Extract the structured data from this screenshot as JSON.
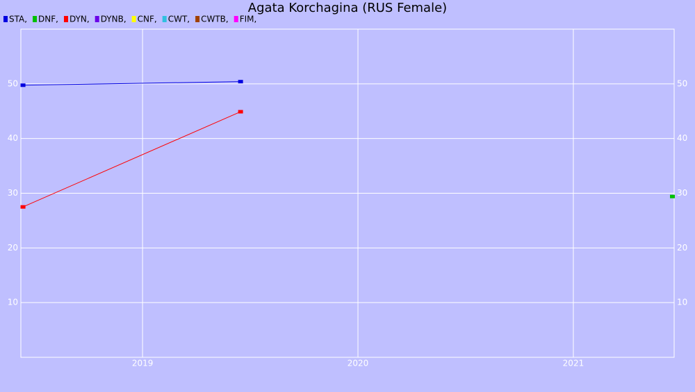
{
  "chart_data": {
    "type": "line",
    "title": "Agata Korchagina (RUS Female)",
    "series": [
      {
        "name": "STA,",
        "color": "#0000e0",
        "x": [
          2018.445,
          2019.455
        ],
        "values": [
          49.75,
          50.4
        ]
      },
      {
        "name": "DNF,",
        "color": "#00c000",
        "x": [
          2021.46
        ],
        "values": [
          29.4
        ]
      },
      {
        "name": "DYN,",
        "color": "#ff0000",
        "x": [
          2018.445,
          2019.455
        ],
        "values": [
          27.5,
          44.9
        ]
      },
      {
        "name": "DYNB,",
        "color": "#6a00e8",
        "x": [],
        "values": []
      },
      {
        "name": "CNF,",
        "color": "#ffff00",
        "x": [],
        "values": []
      },
      {
        "name": "CWT,",
        "color": "#30c0e0",
        "x": [],
        "values": []
      },
      {
        "name": "CWTB,",
        "color": "#a04000",
        "x": [],
        "values": []
      },
      {
        "name": "FIM,",
        "color": "#ff00ff",
        "x": [],
        "values": []
      }
    ],
    "xlim": [
      2018.435,
      2021.468
    ],
    "xticks": [
      2019,
      2020,
      2021
    ],
    "ylim": [
      0,
      60
    ],
    "yticks": [
      10,
      20,
      30,
      40,
      50
    ],
    "grid": true
  }
}
